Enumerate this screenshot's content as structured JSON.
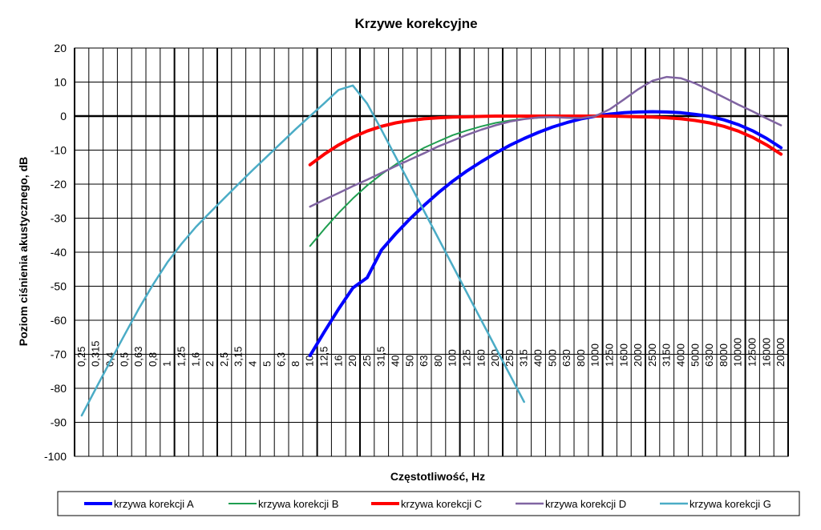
{
  "chart_data": {
    "type": "line",
    "title": "Krzywe korekcyjne",
    "xlabel": "Częstotliwość, Hz",
    "ylabel": "Poziom ciśnienia akustycznego, dB",
    "ylim": [
      -100,
      20
    ],
    "yticks": [
      "20",
      "10",
      "0",
      "-10",
      "-20",
      "-30",
      "-40",
      "-50",
      "-60",
      "-70",
      "-80",
      "-90",
      "-100"
    ],
    "grid": true,
    "legend_position": "bottom",
    "categories": [
      "0,25",
      "0,315",
      "0,4",
      "0,5",
      "0,63",
      "0,8",
      "1",
      "1,25",
      "1,6",
      "2",
      "2,5",
      "3,15",
      "4",
      "5",
      "6,3",
      "8",
      "10",
      "12,5",
      "16",
      "20",
      "25",
      "31,5",
      "40",
      "50",
      "63",
      "80",
      "100",
      "125",
      "160",
      "200",
      "250",
      "315",
      "400",
      "500",
      "630",
      "800",
      "1000",
      "1250",
      "1600",
      "2000",
      "2500",
      "3150",
      "4000",
      "5000",
      "6300",
      "8000",
      "10000",
      "12500",
      "16000",
      "20000"
    ],
    "series": [
      {
        "name": "krzywa korekcji A",
        "color": "#0000ff",
        "width": 4,
        "values": [
          null,
          null,
          null,
          null,
          null,
          null,
          null,
          null,
          null,
          null,
          null,
          null,
          null,
          null,
          null,
          null,
          -70.4,
          -63.4,
          -56.7,
          -50.5,
          -47.5,
          -39.4,
          -34.6,
          -30.2,
          -26.2,
          -22.5,
          -19.1,
          -16.1,
          -13.4,
          -10.9,
          -8.6,
          -6.6,
          -4.8,
          -3.2,
          -1.9,
          -0.8,
          0.0,
          0.6,
          1.0,
          1.2,
          1.3,
          1.2,
          1.0,
          0.5,
          -0.1,
          -1.1,
          -2.5,
          -4.3,
          -6.6,
          -9.3
        ]
      },
      {
        "name": "krzywa korekcji B",
        "color": "#1f9e50",
        "width": 2,
        "values": [
          null,
          null,
          null,
          null,
          null,
          null,
          null,
          null,
          null,
          null,
          null,
          null,
          null,
          null,
          null,
          null,
          -38.2,
          -33.2,
          -28.5,
          -24.2,
          -20.4,
          -17.1,
          -14.2,
          -11.6,
          -9.3,
          -7.4,
          -5.6,
          -4.2,
          -3.0,
          -2.0,
          -1.3,
          -0.8,
          -0.5,
          -0.3,
          -0.1,
          0.0,
          0.0,
          0.0,
          0.0,
          -0.1,
          -0.2,
          -0.4,
          -0.7,
          -1.2,
          -1.9,
          -2.9,
          -4.3,
          -6.1,
          -8.4,
          -11.1
        ]
      },
      {
        "name": "krzywa korekcji C",
        "color": "#ff0000",
        "width": 4,
        "values": [
          null,
          null,
          null,
          null,
          null,
          null,
          null,
          null,
          null,
          null,
          null,
          null,
          null,
          null,
          null,
          null,
          -14.3,
          -11.2,
          -8.5,
          -6.2,
          -4.4,
          -3.0,
          -2.0,
          -1.3,
          -0.8,
          -0.5,
          -0.3,
          -0.2,
          -0.1,
          0.0,
          0.0,
          0.0,
          0.0,
          0.0,
          0.0,
          0.0,
          0.0,
          0.0,
          -0.1,
          -0.2,
          -0.3,
          -0.5,
          -0.8,
          -1.3,
          -2.0,
          -3.0,
          -4.4,
          -6.2,
          -8.5,
          -11.2
        ]
      },
      {
        "name": "krzywa korekcji D",
        "color": "#8064a2",
        "width": 2.5,
        "values": [
          null,
          null,
          null,
          null,
          null,
          null,
          null,
          null,
          null,
          null,
          null,
          null,
          null,
          null,
          null,
          null,
          -26.6,
          -24.6,
          -22.6,
          -20.6,
          -18.7,
          -16.7,
          -14.7,
          -12.8,
          -10.9,
          -8.9,
          -7.2,
          -5.5,
          -4.0,
          -2.7,
          -1.6,
          -0.9,
          -0.4,
          -0.3,
          -0.5,
          -0.6,
          0.0,
          2.0,
          4.9,
          7.9,
          10.4,
          11.5,
          11.1,
          9.6,
          7.6,
          5.5,
          3.4,
          1.4,
          -0.7,
          -2.7
        ]
      },
      {
        "name": "krzywa korekcji G",
        "color": "#4bacc6",
        "width": 2.5,
        "values": [
          -88.0,
          -80.0,
          -72.1,
          -64.3,
          -56.6,
          -49.5,
          -43.0,
          -37.5,
          -32.6,
          -28.3,
          -24.1,
          -19.9,
          -15.8,
          -11.8,
          -7.8,
          -3.8,
          0.0,
          3.8,
          7.7,
          9.0,
          3.7,
          -4.0,
          -12.0,
          -20.0,
          -28.0,
          -36.0,
          -44.0,
          -52.0,
          -60.0,
          -68.0,
          -76.0,
          -84.0,
          null,
          null,
          null,
          null,
          null,
          null,
          null,
          null,
          null,
          null,
          null,
          null,
          null,
          null,
          null,
          null,
          null,
          null
        ]
      }
    ]
  }
}
